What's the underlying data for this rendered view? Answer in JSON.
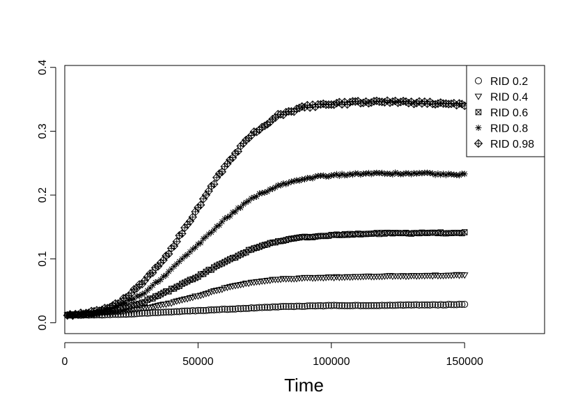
{
  "chart_data": {
    "type": "scatter",
    "title": "",
    "xlabel": "Time",
    "ylabel": "",
    "xlim": [
      0,
      180000
    ],
    "ylim": [
      -0.017,
      0.403
    ],
    "x_ticks": [
      0,
      50000,
      100000,
      150000
    ],
    "x_tick_labels": [
      "0",
      "50000",
      "100000",
      "150000"
    ],
    "y_ticks": [
      0.0,
      0.1,
      0.2,
      0.3,
      0.4
    ],
    "y_tick_labels": [
      "0.0",
      "0.1",
      "0.2",
      "0.3",
      "0.4"
    ],
    "grid": false,
    "legend_position": "top-right",
    "x_range": [
      1000,
      150000
    ],
    "points_per_series": 150,
    "series": [
      {
        "name": "RID 0.2",
        "marker": "circle",
        "x": [
          1000,
          10000,
          20000,
          30000,
          40000,
          50000,
          60000,
          70000,
          80000,
          90000,
          100000,
          110000,
          120000,
          130000,
          140000,
          150000
        ],
        "y": [
          0.012,
          0.012,
          0.013,
          0.015,
          0.017,
          0.019,
          0.021,
          0.023,
          0.025,
          0.026,
          0.027,
          0.027,
          0.027,
          0.028,
          0.028,
          0.029
        ]
      },
      {
        "name": "RID 0.4",
        "marker": "triangle-down",
        "x": [
          1000,
          10000,
          20000,
          30000,
          40000,
          50000,
          60000,
          70000,
          80000,
          90000,
          100000,
          110000,
          120000,
          130000,
          140000,
          150000
        ],
        "y": [
          0.012,
          0.013,
          0.016,
          0.022,
          0.031,
          0.042,
          0.054,
          0.063,
          0.068,
          0.07,
          0.071,
          0.072,
          0.073,
          0.073,
          0.074,
          0.075
        ]
      },
      {
        "name": "RID 0.6",
        "marker": "square-cross",
        "x": [
          1000,
          10000,
          20000,
          30000,
          40000,
          50000,
          60000,
          70000,
          80000,
          90000,
          100000,
          110000,
          120000,
          130000,
          140000,
          150000
        ],
        "y": [
          0.012,
          0.014,
          0.02,
          0.033,
          0.052,
          0.073,
          0.095,
          0.115,
          0.128,
          0.134,
          0.137,
          0.139,
          0.14,
          0.14,
          0.141,
          0.141
        ]
      },
      {
        "name": "RID 0.8",
        "marker": "asterisk",
        "x": [
          1000,
          10000,
          20000,
          30000,
          40000,
          50000,
          60000,
          70000,
          80000,
          90000,
          100000,
          110000,
          120000,
          130000,
          140000,
          150000
        ],
        "y": [
          0.012,
          0.015,
          0.025,
          0.048,
          0.083,
          0.122,
          0.162,
          0.195,
          0.215,
          0.226,
          0.231,
          0.233,
          0.234,
          0.234,
          0.233,
          0.232
        ]
      },
      {
        "name": "RID 0.98",
        "marker": "diamond-plus",
        "x": [
          1000,
          10000,
          20000,
          30000,
          40000,
          50000,
          60000,
          70000,
          80000,
          90000,
          100000,
          110000,
          120000,
          130000,
          140000,
          150000
        ],
        "y": [
          0.012,
          0.016,
          0.03,
          0.065,
          0.115,
          0.18,
          0.245,
          0.295,
          0.325,
          0.338,
          0.343,
          0.345,
          0.346,
          0.345,
          0.343,
          0.341
        ]
      }
    ]
  }
}
